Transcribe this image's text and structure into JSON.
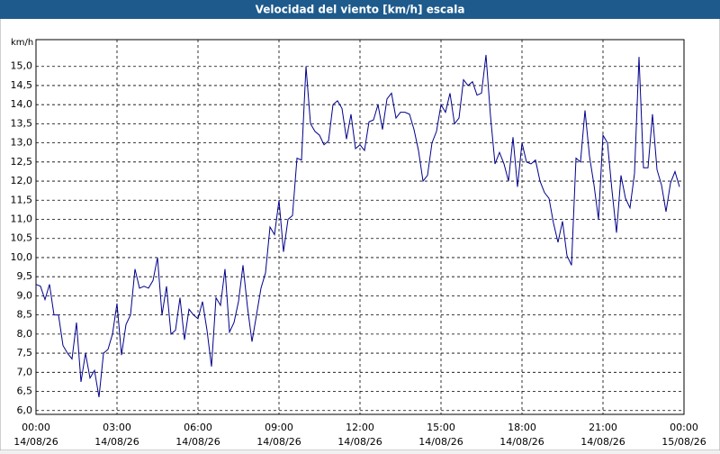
{
  "chart_data": {
    "type": "line",
    "title": "Velocidad del viento [km/h] escala",
    "y_unit": "km/h",
    "color": "#00008b",
    "grid": true,
    "xlim": [
      0,
      1440
    ],
    "xticks": [
      {
        "value": 0,
        "label": "00:00",
        "date": "14/08/26"
      },
      {
        "value": 180,
        "label": "03:00",
        "date": "14/08/26"
      },
      {
        "value": 360,
        "label": "06:00",
        "date": "14/08/26"
      },
      {
        "value": 540,
        "label": "09:00",
        "date": "14/08/26"
      },
      {
        "value": 720,
        "label": "12:00",
        "date": "14/08/26"
      },
      {
        "value": 900,
        "label": "15:00",
        "date": "14/08/26"
      },
      {
        "value": 1080,
        "label": "18:00",
        "date": "14/08/26"
      },
      {
        "value": 1260,
        "label": "21:00",
        "date": "14/08/26"
      },
      {
        "value": 1440,
        "label": "00:00",
        "date": "15/08/26"
      }
    ],
    "ylim": [
      5.9,
      15.7
    ],
    "yticks": [
      {
        "value": 6,
        "label": "6,0"
      },
      {
        "value": 6.5,
        "label": "6,5"
      },
      {
        "value": 7,
        "label": "7,0"
      },
      {
        "value": 7.5,
        "label": "7,5"
      },
      {
        "value": 8,
        "label": "8,0"
      },
      {
        "value": 8.5,
        "label": "8,5"
      },
      {
        "value": 9,
        "label": "9,0"
      },
      {
        "value": 9.5,
        "label": "9,5"
      },
      {
        "value": 10,
        "label": "10,0"
      },
      {
        "value": 10.5,
        "label": "10,5"
      },
      {
        "value": 11,
        "label": "11,0"
      },
      {
        "value": 11.5,
        "label": "11,5"
      },
      {
        "value": 12,
        "label": "12,0"
      },
      {
        "value": 12.5,
        "label": "12,5"
      },
      {
        "value": 13,
        "label": "13,0"
      },
      {
        "value": 13.5,
        "label": "13,5"
      },
      {
        "value": 14,
        "label": "14,0"
      },
      {
        "value": 14.5,
        "label": "14,5"
      },
      {
        "value": 15,
        "label": "15,0"
      }
    ],
    "x": [
      0,
      10,
      20,
      30,
      40,
      50,
      60,
      70,
      80,
      90,
      100,
      110,
      120,
      130,
      140,
      150,
      160,
      170,
      180,
      190,
      200,
      210,
      220,
      230,
      240,
      250,
      260,
      270,
      280,
      290,
      300,
      310,
      320,
      330,
      340,
      350,
      360,
      370,
      380,
      390,
      400,
      410,
      420,
      430,
      440,
      450,
      460,
      470,
      480,
      490,
      500,
      510,
      520,
      530,
      540,
      550,
      560,
      570,
      580,
      590,
      600,
      610,
      620,
      630,
      640,
      650,
      660,
      670,
      680,
      690,
      700,
      710,
      720,
      730,
      740,
      750,
      760,
      770,
      780,
      790,
      800,
      810,
      820,
      830,
      840,
      850,
      860,
      870,
      880,
      890,
      900,
      910,
      920,
      930,
      940,
      950,
      960,
      970,
      980,
      990,
      1000,
      1010,
      1020,
      1030,
      1040,
      1050,
      1060,
      1070,
      1080,
      1090,
      1100,
      1110,
      1120,
      1130,
      1140,
      1150,
      1160,
      1170,
      1180,
      1190,
      1200,
      1210,
      1220,
      1230,
      1240,
      1250,
      1260,
      1270,
      1280,
      1290,
      1300,
      1310,
      1320,
      1330,
      1340,
      1350,
      1360,
      1370,
      1380,
      1390,
      1400,
      1410,
      1420,
      1430
    ],
    "values": [
      9.3,
      9.25,
      8.9,
      9.3,
      8.5,
      8.5,
      7.7,
      7.5,
      7.35,
      8.3,
      6.75,
      7.5,
      6.85,
      7.05,
      6.35,
      7.5,
      7.6,
      8.0,
      8.8,
      7.45,
      8.25,
      8.5,
      9.7,
      9.2,
      9.25,
      9.2,
      9.4,
      10.0,
      8.5,
      9.25,
      8.0,
      8.1,
      8.95,
      7.85,
      8.65,
      8.5,
      8.4,
      8.85,
      8.1,
      7.15,
      8.95,
      8.75,
      9.7,
      8.05,
      8.3,
      8.85,
      9.8,
      8.7,
      7.8,
      8.5,
      9.2,
      9.6,
      10.8,
      10.6,
      11.5,
      10.15,
      11.0,
      11.1,
      12.6,
      12.55,
      15.0,
      13.5,
      13.3,
      13.2,
      12.95,
      13.05,
      14.0,
      14.1,
      13.9,
      13.1,
      13.75,
      12.85,
      12.95,
      12.8,
      13.55,
      13.6,
      14.0,
      13.35,
      14.15,
      14.3,
      13.65,
      13.8,
      13.8,
      13.75,
      13.35,
      12.8,
      12.0,
      12.15,
      13.0,
      13.3,
      14.0,
      13.8,
      14.3,
      13.5,
      13.65,
      14.65,
      14.5,
      14.6,
      14.25,
      14.3,
      15.3,
      13.7,
      12.45,
      12.75,
      12.45,
      12.0,
      13.15,
      11.85,
      13.0,
      12.5,
      12.45,
      12.55,
      12.0,
      11.7,
      11.55,
      10.9,
      10.4,
      10.95,
      10.05,
      9.8,
      12.6,
      12.5,
      13.85,
      12.65,
      11.9,
      11.0,
      13.2,
      13.0,
      11.75,
      10.65,
      12.15,
      11.55,
      11.3,
      12.2,
      15.25,
      12.35,
      12.35,
      13.75,
      12.3,
      11.9,
      11.2,
      11.95,
      12.25,
      11.85
    ]
  }
}
